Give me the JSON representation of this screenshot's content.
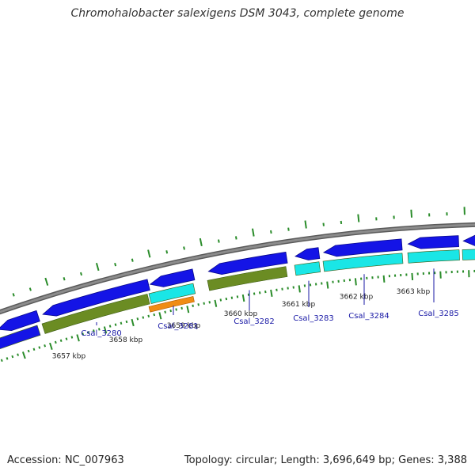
{
  "map": {
    "title": "Chromohalobacter salexigens DSM 3043, complete genome",
    "accession": "Accession: NC_007963",
    "topology": "Topology: circular; Length: 3,696,649 bp; Genes: 3,388"
  },
  "colors": {
    "backbone": "#8c8c8c",
    "cds": "#1414e6",
    "gene_olive": "#6b8c23",
    "gene_cyan": "#1ae6e6",
    "gene_orange": "#f08c14",
    "tick": "#2a8c2a",
    "label": "#1a1aa6"
  },
  "kbp_ticks": [
    {
      "label": "3657 kbp"
    },
    {
      "label": "3658 kbp"
    },
    {
      "label": "3659 kbp"
    },
    {
      "label": "3660 kbp"
    },
    {
      "label": "3661 kbp"
    },
    {
      "label": "3662 kbp"
    },
    {
      "label": "3663 kbp"
    }
  ],
  "genes": [
    {
      "label": "Csal_3280"
    },
    {
      "label": "Csal_3281"
    },
    {
      "label": "Csal_3282"
    },
    {
      "label": "Csal_3283"
    },
    {
      "label": "Csal_3284"
    },
    {
      "label": "Csal_3285"
    }
  ]
}
